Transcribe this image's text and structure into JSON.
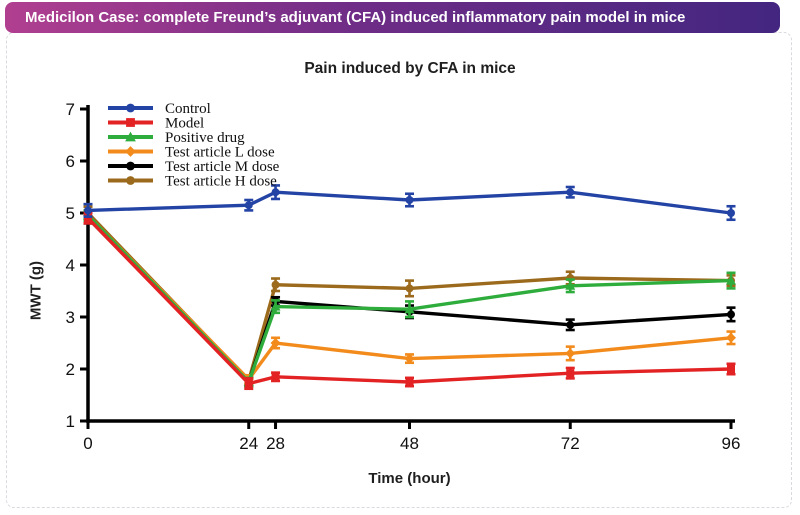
{
  "banner": {
    "text": "Medicilon Case: complete Freund’s adjuvant (CFA) induced inflammatory pain model in mice",
    "gradient_left": "#b13f90",
    "gradient_right": "#432680",
    "text_color": "#ffffff"
  },
  "chart_data": {
    "type": "line",
    "title": "Pain induced by CFA in mice",
    "xlabel": "Time (hour)",
    "ylabel": "MWT (g)",
    "x": [
      0,
      24,
      28,
      48,
      72,
      96
    ],
    "xticks": [
      0,
      24,
      28,
      48,
      72,
      96
    ],
    "yticks": [
      1,
      2,
      3,
      4,
      5,
      6,
      7
    ],
    "xlim": [
      0,
      96
    ],
    "ylim": [
      1,
      7
    ],
    "grid": false,
    "legend_position": "top-left",
    "axis_color": "#000000",
    "series": [
      {
        "name": "Control",
        "color": "#2343a5",
        "marker": "circle",
        "values": [
          5.05,
          5.15,
          5.4,
          5.25,
          5.4,
          5.0
        ],
        "errors": [
          0.12,
          0.1,
          0.13,
          0.12,
          0.1,
          0.13
        ]
      },
      {
        "name": "Model",
        "color": "#e32224",
        "marker": "square",
        "values": [
          4.9,
          1.72,
          1.85,
          1.75,
          1.92,
          2.0
        ],
        "errors": [
          0.1,
          0.1,
          0.08,
          0.08,
          0.1,
          0.1
        ]
      },
      {
        "name": "Positive drug",
        "color": "#2fad3c",
        "marker": "triangle",
        "values": [
          4.95,
          1.75,
          3.2,
          3.15,
          3.6,
          3.7
        ],
        "errors": [
          0.1,
          0.08,
          0.12,
          0.15,
          0.12,
          0.15
        ]
      },
      {
        "name": "Test article L dose",
        "color": "#f28b1c",
        "marker": "diamond",
        "values": [
          4.95,
          1.8,
          2.5,
          2.2,
          2.3,
          2.6
        ],
        "errors": [
          0.1,
          0.08,
          0.1,
          0.08,
          0.13,
          0.12
        ]
      },
      {
        "name": "Test article M dose",
        "color": "#000000",
        "marker": "circle",
        "values": [
          4.9,
          1.75,
          3.3,
          3.1,
          2.85,
          3.05
        ],
        "errors": [
          0.1,
          0.08,
          0.08,
          0.12,
          0.1,
          0.13
        ]
      },
      {
        "name": "Test article H dose",
        "color": "#9b6a1c",
        "marker": "circle",
        "values": [
          5.0,
          1.78,
          3.62,
          3.55,
          3.75,
          3.7
        ],
        "errors": [
          0.12,
          0.08,
          0.12,
          0.15,
          0.12,
          0.1
        ]
      }
    ],
    "draw_order": [
      5,
      4,
      3,
      2,
      1,
      0
    ]
  }
}
